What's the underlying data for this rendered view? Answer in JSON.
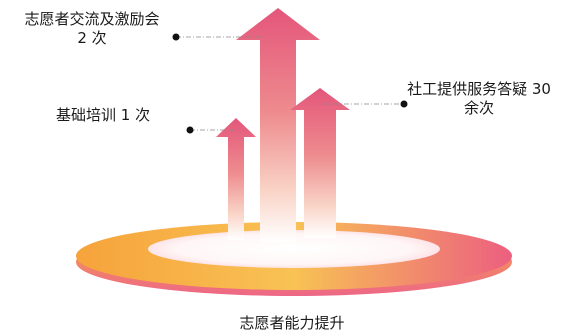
{
  "labels": {
    "top_line1": "志愿者交流及激励会",
    "top_line2": "2 次",
    "right_line1": "社工提供服务答疑 30",
    "right_line2": "余次",
    "left": "基础培训 1 次",
    "base": "志愿者能力提升"
  },
  "colors": {
    "arrow_top": "#e4567a",
    "arrow_fade": "#ffffff",
    "ring_orange": "#f6a33b",
    "ring_pink": "#ec5f80",
    "leader_line": "#888888",
    "dot": "#111111"
  }
}
